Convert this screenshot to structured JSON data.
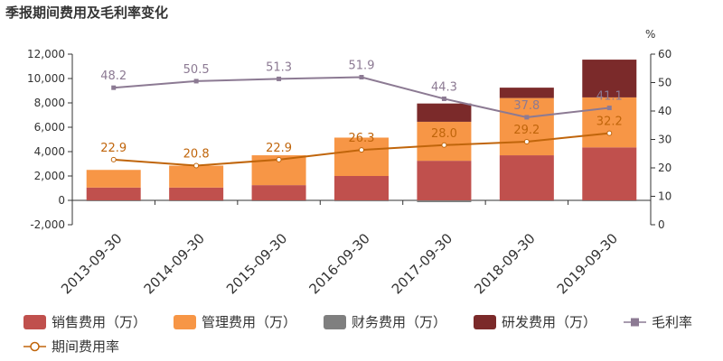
{
  "chart_data": {
    "type": "bar",
    "title": "季报期间费用及毛利率变化",
    "categories": [
      "2013-09-30",
      "2014-09-30",
      "2015-09-30",
      "2016-09-30",
      "2017-09-30",
      "2018-09-30",
      "2019-09-30"
    ],
    "y_left": {
      "ticks": [
        "-2,000",
        "0",
        "2,000",
        "4,000",
        "6,000",
        "8,000",
        "10,000",
        "12,000"
      ],
      "ylim": [
        -2000,
        12000
      ]
    },
    "y_right": {
      "unit": "%",
      "ticks": [
        "0",
        "10",
        "20",
        "30",
        "40",
        "50",
        "60"
      ],
      "ylim": [
        0,
        60
      ]
    },
    "bar_series": [
      {
        "name": "销售费用（万）",
        "color": "#c0504d",
        "values": [
          1050,
          1050,
          1250,
          2000,
          3250,
          3700,
          4350
        ]
      },
      {
        "name": "管理费用（万）",
        "color": "#f79646",
        "values": [
          1450,
          1800,
          2450,
          3150,
          3200,
          4700,
          4100
        ]
      },
      {
        "name": "财务费用（万）",
        "color": "#7f7f7f",
        "values": [
          -30,
          -40,
          -60,
          -80,
          -150,
          -70,
          -50
        ]
      },
      {
        "name": "研发费用（万）",
        "color": "#7b2a2a",
        "values": [
          0,
          0,
          0,
          0,
          1500,
          850,
          3100
        ]
      }
    ],
    "line_series": [
      {
        "name": "毛利率",
        "color": "#8c7a93",
        "marker": "square",
        "values": [
          48.2,
          50.5,
          51.3,
          51.9,
          44.3,
          37.8,
          41.1
        ],
        "labels": [
          "48.2",
          "50.5",
          "51.3",
          "51.9",
          "44.3",
          "37.8",
          "41.1"
        ]
      },
      {
        "name": "期间费用率",
        "color": "#c0650b",
        "marker": "circle",
        "values": [
          22.9,
          20.8,
          22.9,
          26.3,
          28.0,
          29.2,
          32.2
        ],
        "labels": [
          "22.9",
          "20.8",
          "22.9",
          "26.3",
          "28.0",
          "29.2",
          "32.2"
        ]
      }
    ],
    "legend": {
      "placement": "bottom"
    },
    "grid": false
  }
}
